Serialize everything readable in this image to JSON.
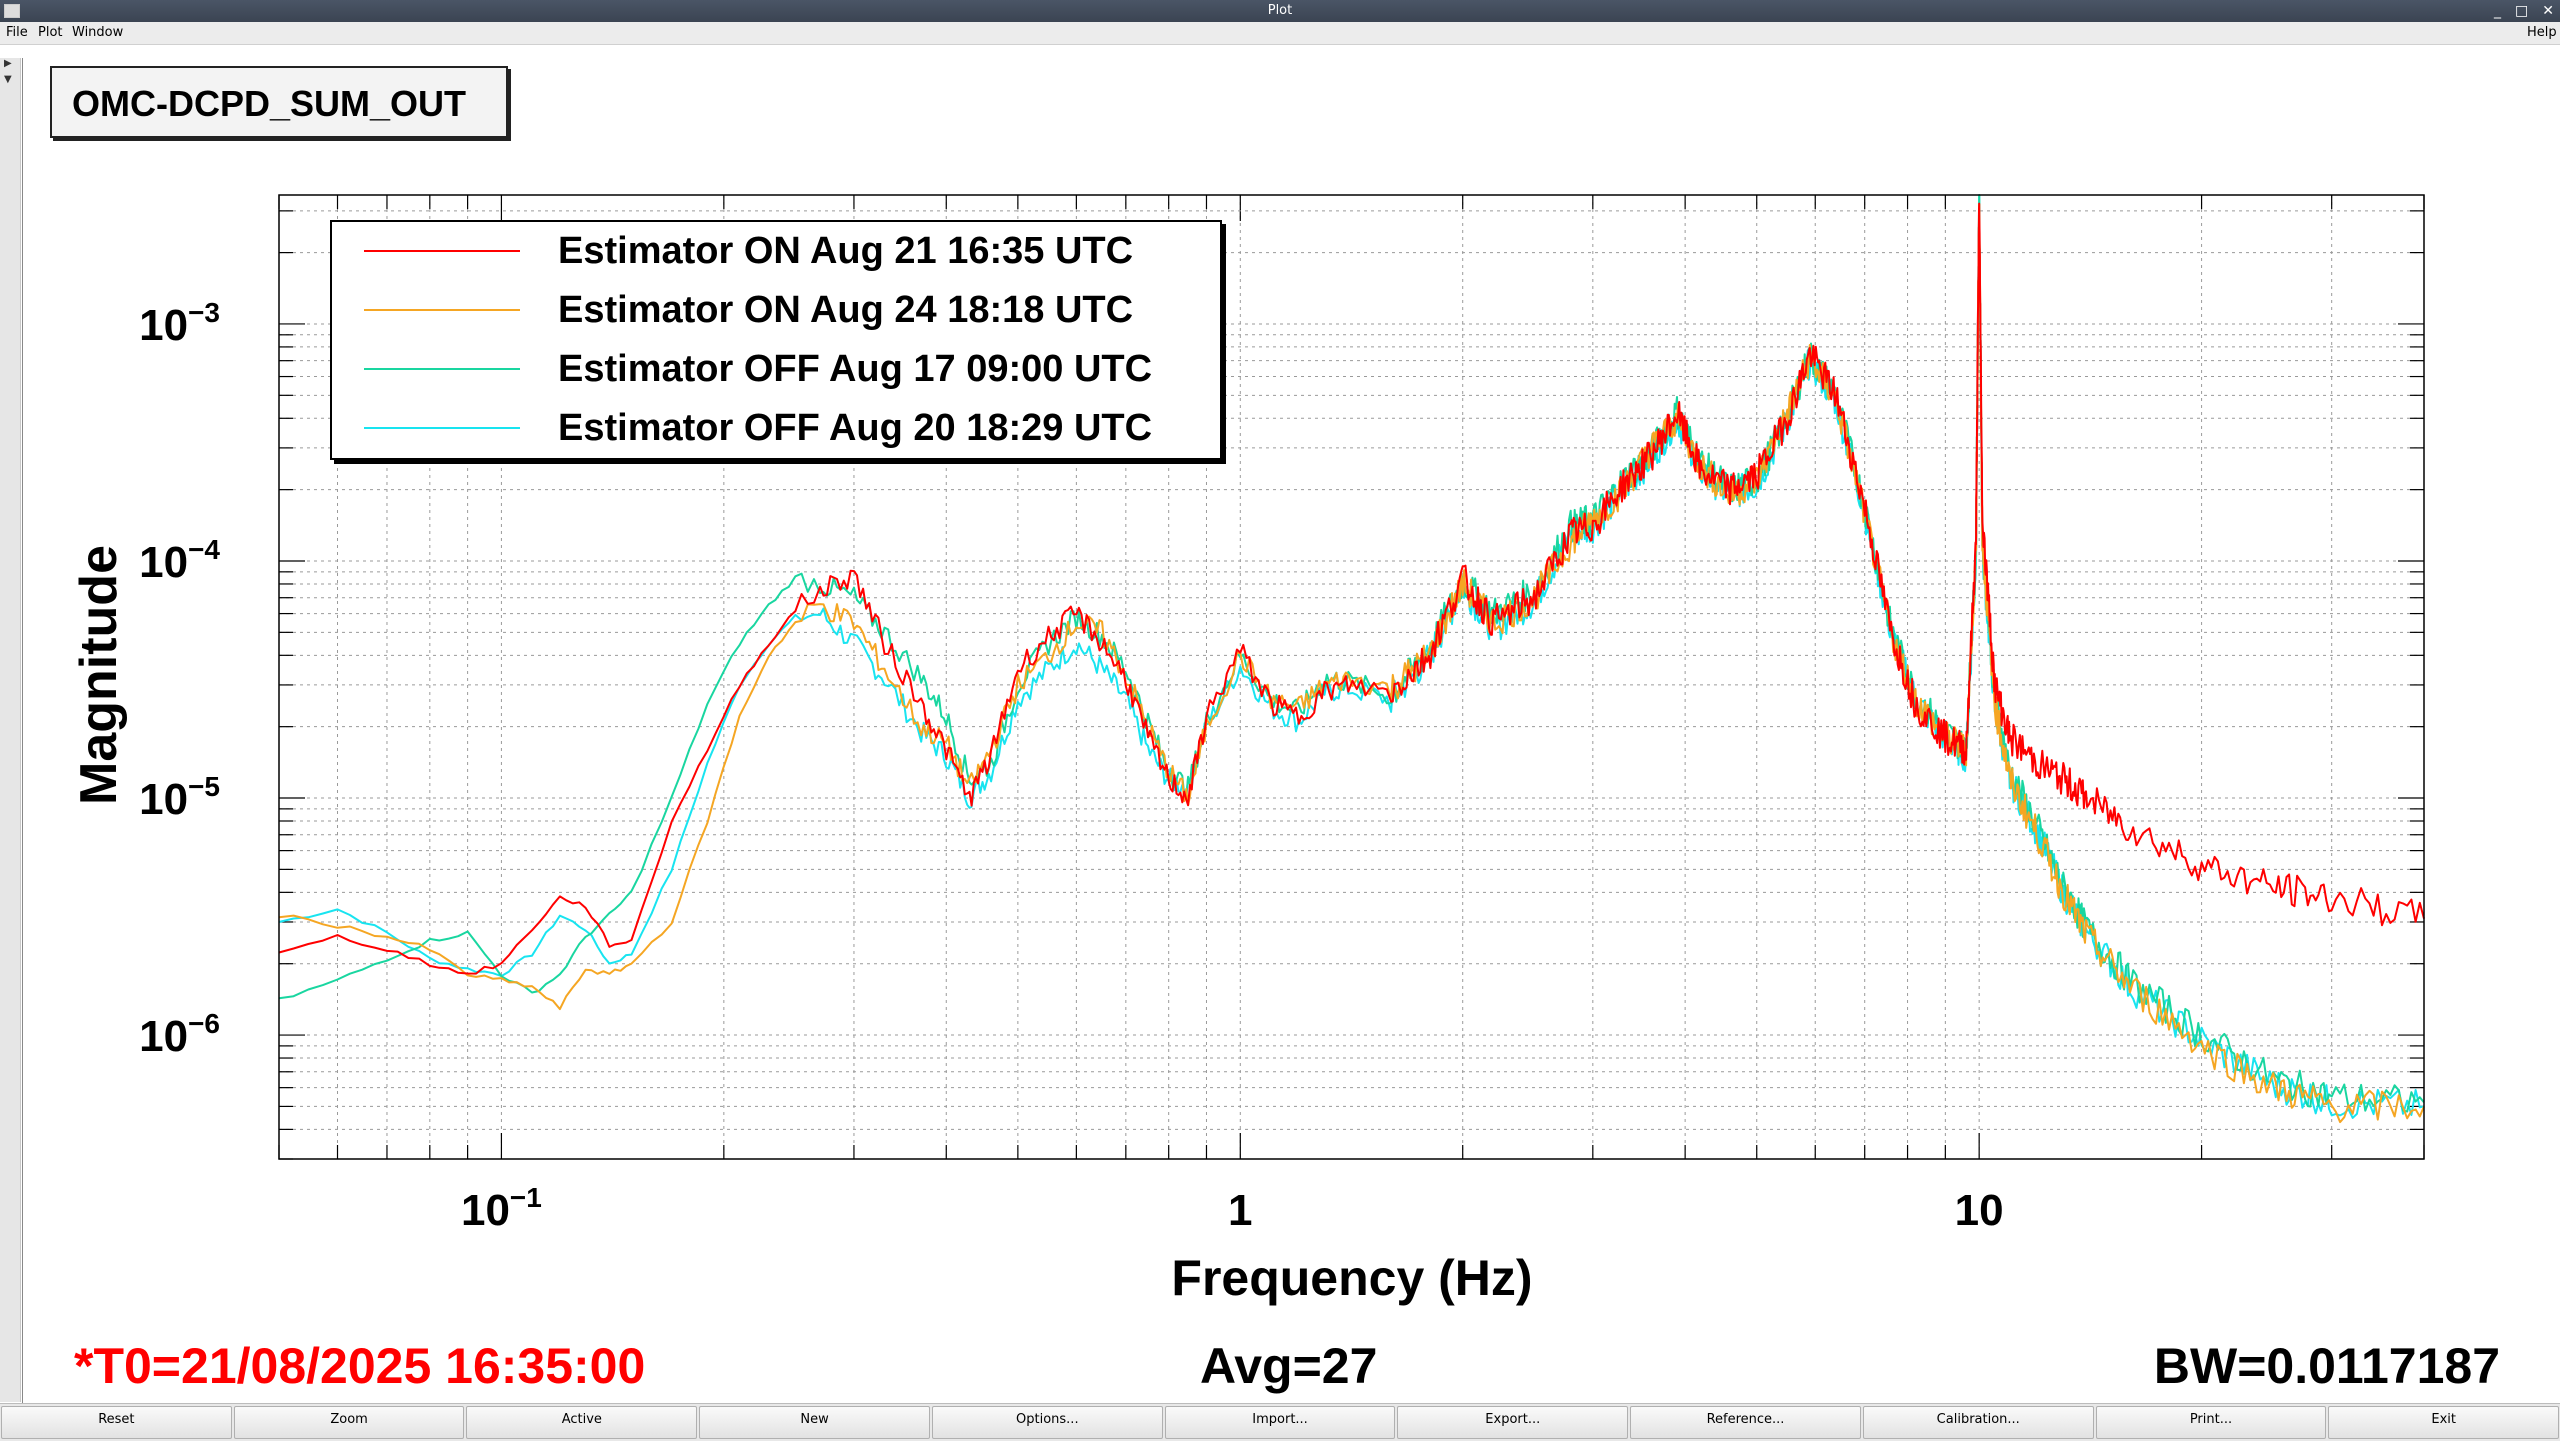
{
  "window": {
    "title": "Plot",
    "controls": [
      "_",
      "□",
      "✕"
    ]
  },
  "menubar": {
    "items": [
      "File",
      "Plot",
      "Window"
    ],
    "help": "Help"
  },
  "plot": {
    "name": "OMC-DCPD_SUM_OUT"
  },
  "colors": {
    "red": "#ff0000",
    "orange": "#f5a623",
    "teal": "#19d6a0",
    "cyan": "#18e4f0"
  },
  "status": {
    "t0": "*T0=21/08/2025 16:35:00",
    "avg": "Avg=27",
    "bw": "BW=0.0117187"
  },
  "buttons": [
    "Reset",
    "Zoom",
    "Active",
    "New",
    "Options...",
    "Import...",
    "Export...",
    "Reference...",
    "Calibration...",
    "Print...",
    "Exit"
  ],
  "chart_data": {
    "type": "line",
    "title": "",
    "xlabel": "Frequency (Hz)",
    "ylabel": "Magnitude",
    "xscale": "log",
    "yscale": "log",
    "xlim": [
      0.05,
      40
    ],
    "ylim": [
      3e-07,
      0.0035
    ],
    "x_tick_labels": [
      {
        "base": "10",
        "exp": "−1",
        "value": 0.1
      },
      {
        "base": "1",
        "exp": "",
        "value": 1
      },
      {
        "base": "10",
        "exp": "",
        "value": 10
      }
    ],
    "y_tick_labels": [
      {
        "base": "10",
        "exp": "−3",
        "value": 0.001
      },
      {
        "base": "10",
        "exp": "−4",
        "value": 0.0001
      },
      {
        "base": "10",
        "exp": "−5",
        "value": 1e-05
      },
      {
        "base": "10",
        "exp": "−6",
        "value": 1e-06
      }
    ],
    "grid": true,
    "legend_position": "top-left",
    "series": [
      {
        "name": "Estimator ON Aug 21 16:35 UTC",
        "color": "#ff0000",
        "x": [
          0.05,
          0.06,
          0.07,
          0.08,
          0.09,
          0.1,
          0.11,
          0.12,
          0.13,
          0.14,
          0.15,
          0.17,
          0.19,
          0.21,
          0.23,
          0.25,
          0.27,
          0.3,
          0.33,
          0.37,
          0.4,
          0.43,
          0.46,
          0.5,
          0.55,
          0.6,
          0.65,
          0.7,
          0.75,
          0.8,
          0.85,
          0.9,
          1.0,
          1.1,
          1.2,
          1.3,
          1.4,
          1.6,
          1.8,
          2.0,
          2.2,
          2.5,
          2.8,
          3.0,
          3.3,
          3.6,
          3.9,
          4.2,
          4.6,
          5.0,
          5.5,
          5.9,
          6.4,
          7.0,
          7.6,
          8.2,
          9.0,
          9.6,
          9.9,
          10.0,
          10.1,
          10.5,
          11,
          12,
          13,
          14,
          16,
          20,
          25,
          30,
          40
        ],
        "y": [
          2.2e-06,
          2.6e-06,
          2.3e-06,
          2e-06,
          1.8e-06,
          2e-06,
          2.8e-06,
          3.8e-06,
          3.5e-06,
          2.4e-06,
          2.5e-06,
          8e-06,
          1.6e-05,
          3e-05,
          4.5e-05,
          6.2e-05,
          7.5e-05,
          8.8e-05,
          4.5e-05,
          2.5e-05,
          1.6e-05,
          1e-05,
          1.5e-05,
          3.5e-05,
          4.8e-05,
          6e-05,
          4.5e-05,
          3.2e-05,
          1.8e-05,
          1.2e-05,
          1e-05,
          2.2e-05,
          4.2e-05,
          2.5e-05,
          2.2e-05,
          2.8e-05,
          3e-05,
          2.8e-05,
          4e-05,
          8.5e-05,
          5.5e-05,
          7e-05,
          0.00013,
          0.00014,
          0.00021,
          0.00028,
          0.00042,
          0.00024,
          0.0002,
          0.00023,
          0.0004,
          0.00075,
          0.0005,
          0.00017,
          5e-05,
          2.5e-05,
          1.8e-05,
          1.6e-05,
          0.00012,
          0.0035,
          0.00015,
          3e-05,
          1.8e-05,
          1.4e-05,
          1.2e-05,
          1e-05,
          7.5e-06,
          5.2e-06,
          4.2e-06,
          3.8e-06,
          3.1e-06
        ]
      },
      {
        "name": "Estimator ON Aug 24 18:18 UTC",
        "color": "#f5a623",
        "x": [
          0.05,
          0.06,
          0.07,
          0.08,
          0.09,
          0.1,
          0.11,
          0.12,
          0.13,
          0.14,
          0.15,
          0.17,
          0.19,
          0.21,
          0.23,
          0.25,
          0.27,
          0.3,
          0.33,
          0.37,
          0.4,
          0.43,
          0.46,
          0.5,
          0.55,
          0.6,
          0.65,
          0.7,
          0.75,
          0.8,
          0.85,
          0.9,
          1.0,
          1.1,
          1.2,
          1.3,
          1.4,
          1.6,
          1.8,
          2.0,
          2.2,
          2.5,
          2.8,
          3.0,
          3.3,
          3.6,
          3.9,
          4.2,
          4.6,
          5.0,
          5.5,
          5.9,
          6.4,
          7.0,
          7.6,
          8.2,
          9.0,
          9.6,
          9.9,
          10.0,
          10.1,
          10.5,
          11,
          12,
          13,
          14,
          16,
          20,
          25,
          30,
          40
        ],
        "y": [
          3.2e-06,
          2.9e-06,
          2.6e-06,
          2.3e-06,
          1.8e-06,
          1.7e-06,
          1.6e-06,
          1.3e-06,
          1.9e-06,
          1.8e-06,
          2e-06,
          3e-06,
          8e-06,
          2.2e-05,
          4e-05,
          5.5e-05,
          6.5e-05,
          5.5e-05,
          3.5e-05,
          2e-05,
          1.7e-05,
          1.1e-05,
          1.6e-05,
          3e-05,
          4e-05,
          5.5e-05,
          5e-05,
          3.3e-05,
          2e-05,
          1.3e-05,
          1e-05,
          2e-05,
          4e-05,
          2.6e-05,
          2.4e-05,
          3e-05,
          3.2e-05,
          2.9e-05,
          4e-05,
          8e-05,
          5.5e-05,
          7e-05,
          0.00012,
          0.00015,
          0.0002,
          0.0003,
          0.0004,
          0.00025,
          0.00019,
          0.00022,
          0.00042,
          0.00072,
          0.00048,
          0.00016,
          5e-05,
          2.6e-05,
          1.8e-05,
          1.6e-05,
          0.00011,
          0.0034,
          0.00012,
          2.5e-05,
          1.2e-05,
          7e-06,
          4e-06,
          2.6e-06,
          1.6e-06,
          9e-07,
          6e-07,
          5e-07,
          5e-07
        ]
      },
      {
        "name": "Estimator OFF Aug 17 09:00 UTC",
        "color": "#19d6a0",
        "x": [
          0.05,
          0.06,
          0.07,
          0.08,
          0.09,
          0.1,
          0.11,
          0.12,
          0.13,
          0.14,
          0.15,
          0.17,
          0.19,
          0.21,
          0.23,
          0.25,
          0.27,
          0.3,
          0.33,
          0.37,
          0.4,
          0.43,
          0.46,
          0.5,
          0.55,
          0.6,
          0.65,
          0.7,
          0.75,
          0.8,
          0.85,
          0.9,
          1.0,
          1.1,
          1.2,
          1.3,
          1.4,
          1.6,
          1.8,
          2.0,
          2.2,
          2.5,
          2.8,
          3.0,
          3.3,
          3.6,
          3.9,
          4.2,
          4.6,
          5.0,
          5.5,
          5.9,
          6.4,
          7.0,
          7.6,
          8.2,
          9.0,
          9.6,
          9.9,
          10.0,
          10.1,
          10.5,
          11,
          12,
          13,
          14,
          16,
          20,
          25,
          30,
          40
        ],
        "y": [
          1.4e-06,
          1.7e-06,
          2.1e-06,
          2.5e-06,
          2.7e-06,
          1.8e-06,
          1.5e-06,
          1.8e-06,
          2.6e-06,
          3.2e-06,
          4e-06,
          1e-05,
          2.5e-05,
          4.5e-05,
          6.5e-05,
          8.5e-05,
          8e-05,
          7e-05,
          5e-05,
          3.2e-05,
          2.2e-05,
          1.2e-05,
          1.4e-05,
          3e-05,
          4.5e-05,
          5.8e-05,
          4.8e-05,
          3.5e-05,
          2.1e-05,
          1.3e-05,
          1.1e-05,
          2.1e-05,
          4e-05,
          2.6e-05,
          2.3e-05,
          3.2e-05,
          3.1e-05,
          2.7e-05,
          4.2e-05,
          8.2e-05,
          6e-05,
          7.5e-05,
          0.00014,
          0.00015,
          0.00022,
          0.00029,
          0.00043,
          0.00026,
          0.0002,
          0.00022,
          0.00041,
          0.00074,
          0.0005,
          0.00017,
          5.2e-05,
          2.7e-05,
          1.9e-05,
          1.6e-05,
          0.00011,
          0.0036,
          0.00012,
          2.6e-05,
          1.3e-05,
          7.5e-06,
          4.2e-06,
          2.8e-06,
          1.7e-06,
          1e-06,
          6.5e-07,
          5.5e-07,
          5.2e-07
        ]
      },
      {
        "name": "Estimator OFF Aug 20 18:29 UTC",
        "color": "#18e4f0",
        "x": [
          0.05,
          0.06,
          0.07,
          0.08,
          0.09,
          0.1,
          0.11,
          0.12,
          0.13,
          0.14,
          0.15,
          0.17,
          0.19,
          0.21,
          0.23,
          0.25,
          0.27,
          0.3,
          0.33,
          0.37,
          0.4,
          0.43,
          0.46,
          0.5,
          0.55,
          0.6,
          0.65,
          0.7,
          0.75,
          0.8,
          0.85,
          0.9,
          1.0,
          1.1,
          1.2,
          1.3,
          1.4,
          1.6,
          1.8,
          2.0,
          2.2,
          2.5,
          2.8,
          3.0,
          3.3,
          3.6,
          3.9,
          4.2,
          4.6,
          5.0,
          5.5,
          5.9,
          6.4,
          7.0,
          7.6,
          8.2,
          9.0,
          9.6,
          9.9,
          10.0,
          10.1,
          10.5,
          11,
          12,
          13,
          14,
          16,
          20,
          25,
          30,
          40
        ],
        "y": [
          3e-06,
          3.4e-06,
          2.7e-06,
          2.1e-06,
          1.9e-06,
          1.8e-06,
          2.2e-06,
          3.2e-06,
          2.8e-06,
          2e-06,
          2.2e-06,
          5e-06,
          1.4e-05,
          3e-05,
          4.5e-05,
          5.8e-05,
          6e-05,
          4.5e-05,
          3.2e-05,
          1.9e-05,
          1.5e-05,
          1e-05,
          1.3e-05,
          2.6e-05,
          3.5e-05,
          4.5e-05,
          3.5e-05,
          2.6e-05,
          1.6e-05,
          1.2e-05,
          1.1e-05,
          2e-05,
          3.6e-05,
          2.4e-05,
          2.1e-05,
          2.8e-05,
          2.9e-05,
          2.6e-05,
          3.9e-05,
          7.8e-05,
          5.2e-05,
          6.8e-05,
          0.00013,
          0.00014,
          0.0002,
          0.00027,
          0.0004,
          0.00024,
          0.00019,
          0.00021,
          0.00039,
          0.0007,
          0.00047,
          0.00016,
          5e-05,
          2.6e-05,
          1.8e-05,
          1.5e-05,
          0.0001,
          0.0033,
          0.00011,
          2.4e-05,
          1.2e-05,
          7.2e-06,
          4e-06,
          2.7e-06,
          1.6e-06,
          9.5e-07,
          6.2e-07,
          5.2e-07,
          5e-07
        ]
      }
    ]
  }
}
